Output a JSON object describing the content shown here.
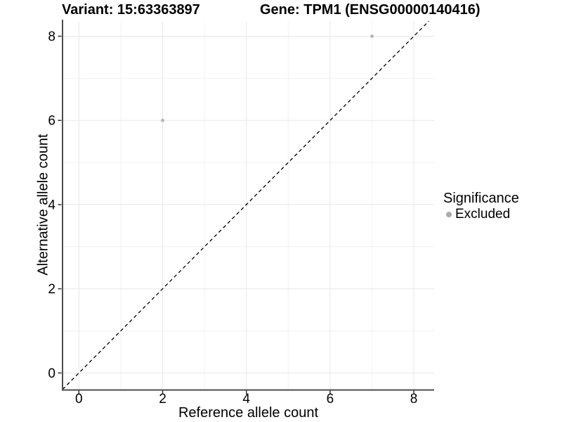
{
  "chart_data": {
    "type": "scatter",
    "title_left": "Variant: 15:63363897",
    "title_right": "Gene: TPM1 (ENSG00000140416)",
    "xlabel": "Reference allele count",
    "ylabel": "Alternative allele count",
    "xticks": [
      0,
      2,
      4,
      6,
      8
    ],
    "yticks": [
      0,
      2,
      4,
      6,
      8
    ],
    "minor_xticks": [
      1,
      3,
      5,
      7
    ],
    "minor_yticks": [
      1,
      3,
      5,
      7
    ],
    "xlim": [
      -0.39,
      8.49
    ],
    "ylim": [
      -0.4,
      8.36
    ],
    "grid": "major-and-minor",
    "points": [
      {
        "x": 2,
        "y": 6,
        "series": "Excluded"
      },
      {
        "x": 7,
        "y": 8,
        "series": "Excluded"
      }
    ],
    "reference_line": {
      "equation": "y = x",
      "style": "dashed",
      "color": "#000000"
    },
    "legend": {
      "title": "Significance",
      "position": "right",
      "entries": [
        {
          "label": "Excluded",
          "color": "#ababab"
        }
      ]
    },
    "colors": {
      "point": "#b4b4b4",
      "grid_major": "#e7e7e7",
      "grid_minor": "#f2f2f2",
      "axis_line": "#4d4d4d",
      "tick_mark": "#333333",
      "text": "#000000",
      "background": "#ffffff"
    }
  }
}
